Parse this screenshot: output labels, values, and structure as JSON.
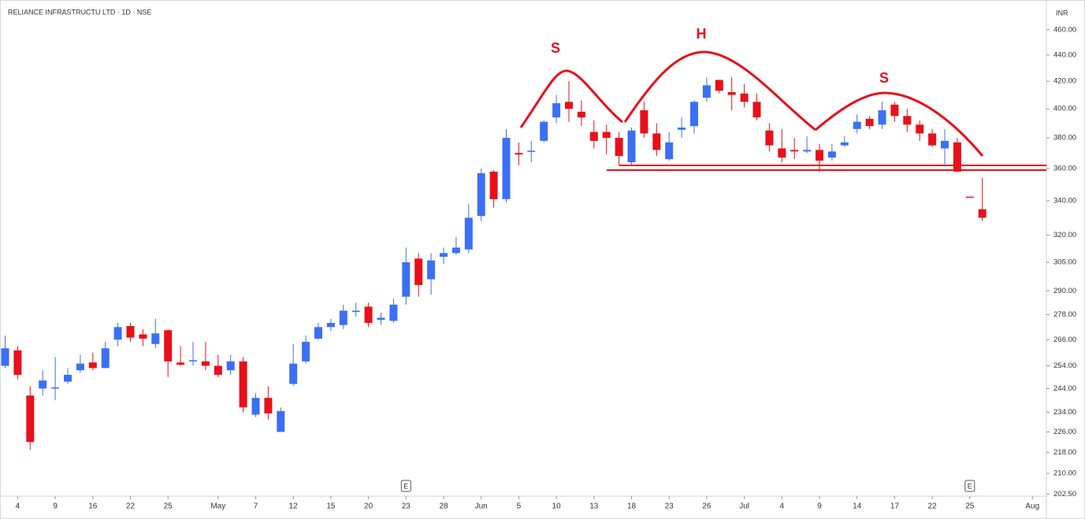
{
  "chart_data": {
    "type": "candlestick",
    "title": "RELIANCE INFRASTRUCTU LTD · 1D · NSE",
    "y_axis_label": "INR",
    "log_scale": true,
    "up_color": "#3b6ff5",
    "down_color": "#e8101a",
    "open": [
      254,
      261,
      241,
      244,
      244,
      247,
      252,
      255.5,
      253,
      266,
      272.5,
      268.5,
      264,
      270.5,
      255.5,
      256,
      256,
      254,
      252,
      256,
      233,
      240,
      226,
      246,
      256,
      266.5,
      272,
      273,
      279.5,
      282,
      275.5,
      275,
      287,
      307,
      296,
      308,
      310,
      312,
      331,
      358,
      341,
      370,
      371,
      378,
      394,
      405,
      398,
      384,
      384,
      380,
      364,
      399,
      383,
      366,
      385.5,
      388,
      408,
      421,
      412,
      411,
      405,
      385,
      373,
      372,
      371,
      372,
      367,
      375,
      386,
      393,
      389,
      403,
      395,
      389,
      383,
      373,
      377,
      342.5,
      335
    ],
    "high": [
      268,
      263,
      245,
      252,
      258,
      253,
      259,
      260,
      265,
      274,
      274,
      271,
      276,
      271,
      263,
      265,
      265,
      259,
      259,
      258,
      242,
      245,
      236,
      264,
      268,
      274,
      276,
      283,
      284,
      284,
      279,
      286,
      313,
      310,
      310,
      313,
      319,
      338,
      360,
      359,
      386,
      377,
      378,
      392,
      410,
      420,
      406,
      392,
      389,
      384,
      387,
      405,
      390,
      384,
      394,
      406,
      423,
      421,
      423,
      418,
      411,
      390,
      386,
      380,
      381,
      376,
      376,
      381,
      396,
      395,
      405,
      405,
      400,
      392,
      386,
      386,
      380,
      342.5,
      354
    ],
    "low": [
      253,
      248,
      219,
      241,
      239,
      246,
      251,
      252,
      253,
      263,
      265,
      263,
      262,
      249,
      254,
      254,
      252,
      249,
      250,
      234,
      232,
      231,
      226,
      245,
      255,
      266,
      270,
      271,
      277,
      272,
      273,
      274,
      283,
      287,
      288,
      304,
      309,
      310,
      328,
      336,
      339,
      362,
      364,
      377,
      390,
      391,
      388,
      373,
      369,
      362,
      362,
      380,
      368,
      365,
      380,
      383,
      405,
      411,
      399,
      401,
      392,
      371,
      364,
      366,
      370,
      358,
      365,
      374,
      383,
      386,
      386,
      391,
      384,
      378,
      374,
      361,
      358,
      342,
      328
    ],
    "close": [
      262,
      250,
      222,
      247.5,
      244.5,
      250,
      255,
      253,
      262,
      272,
      267,
      266.5,
      269,
      256,
      254.5,
      256.5,
      254,
      250,
      256,
      236,
      240,
      233.5,
      234.5,
      255,
      265,
      272,
      274,
      280,
      280,
      274,
      276.5,
      283,
      305,
      293,
      306,
      310,
      313,
      330,
      357,
      341,
      380,
      369,
      371.5,
      391,
      404,
      400,
      394,
      378,
      380,
      368,
      385,
      383,
      372,
      377,
      387,
      405,
      417,
      413,
      410,
      405,
      394,
      375,
      367,
      371,
      372,
      365,
      371,
      377,
      391,
      388,
      399,
      395,
      389,
      383,
      375,
      378,
      358,
      342,
      330
    ],
    "xticks": [
      {
        "value": 1,
        "label": "4"
      },
      {
        "value": 4,
        "label": "9"
      },
      {
        "value": 7,
        "label": "16"
      },
      {
        "value": 10,
        "label": "22"
      },
      {
        "value": 13,
        "label": "25"
      },
      {
        "value": 17,
        "label": "May"
      },
      {
        "value": 20,
        "label": "7"
      },
      {
        "value": 23,
        "label": "12"
      },
      {
        "value": 26,
        "label": "15"
      },
      {
        "value": 29,
        "label": "20"
      },
      {
        "value": 32,
        "label": "23"
      },
      {
        "value": 35,
        "label": "28"
      },
      {
        "value": 38,
        "label": "Jun"
      },
      {
        "value": 41,
        "label": "5"
      },
      {
        "value": 44,
        "label": "10"
      },
      {
        "value": 47,
        "label": "13"
      },
      {
        "value": 50,
        "label": "18"
      },
      {
        "value": 53,
        "label": "23"
      },
      {
        "value": 56,
        "label": "26"
      },
      {
        "value": 59,
        "label": "Jul"
      },
      {
        "value": 62,
        "label": "4"
      },
      {
        "value": 65,
        "label": "9"
      },
      {
        "value": 68,
        "label": "14"
      },
      {
        "value": 71,
        "label": "17"
      },
      {
        "value": 74,
        "label": "22"
      },
      {
        "value": 77,
        "label": "25"
      },
      {
        "value": 82,
        "label": "Aug"
      }
    ],
    "ylim": [
      202.3,
      481.5
    ],
    "yticks": [
      {
        "value": 202.5,
        "label": "202.50"
      },
      {
        "value": 210,
        "label": "210.00"
      },
      {
        "value": 218,
        "label": "218.00"
      },
      {
        "value": 226,
        "label": "226.00"
      },
      {
        "value": 234,
        "label": "234.00"
      },
      {
        "value": 244,
        "label": "244.00"
      },
      {
        "value": 254,
        "label": "254.00"
      },
      {
        "value": 266,
        "label": "266.00"
      },
      {
        "value": 278,
        "label": "278.00"
      },
      {
        "value": 290,
        "label": "290.00"
      },
      {
        "value": 305,
        "label": "305.00"
      },
      {
        "value": 320,
        "label": "320.00"
      },
      {
        "value": 340,
        "label": "340.00"
      },
      {
        "value": 360,
        "label": "360.00"
      },
      {
        "value": 380,
        "label": "380.00"
      },
      {
        "value": 400,
        "label": "400.00"
      },
      {
        "value": 420,
        "label": "420.00"
      },
      {
        "value": 440,
        "label": "440.00"
      },
      {
        "value": 460,
        "label": "460.00"
      }
    ],
    "annotations": [
      "S",
      "H",
      "S"
    ],
    "event_markers": {
      "label": "E",
      "positions": [
        32,
        77
      ]
    }
  }
}
